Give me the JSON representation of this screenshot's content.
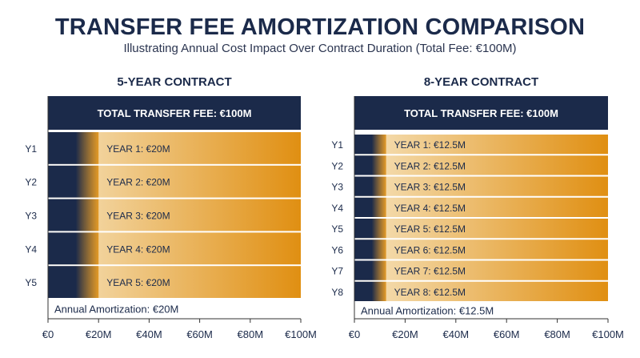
{
  "title": "TRANSFER FEE AMORTIZATION COMPARISON",
  "subtitle": "Illustrating Annual Cost Impact Over Contract Duration (Total Fee: €100M)",
  "colors": {
    "navy": "#1b2a4a",
    "gold_light": "#f6e3bd",
    "gold_dark": "#e08f12",
    "text": "#1b2a4a"
  },
  "chart_data": [
    {
      "type": "bar",
      "orientation": "horizontal",
      "title": "5-YEAR CONTRACT",
      "header_label": "TOTAL TRANSFER FEE: €100M",
      "total_fee": 100,
      "categories": [
        "Y1",
        "Y2",
        "Y3",
        "Y4",
        "Y5"
      ],
      "values": [
        20,
        20,
        20,
        20,
        20
      ],
      "bar_labels": [
        "YEAR 1: €20M",
        "YEAR 2: €20M",
        "YEAR 3: €20M",
        "YEAR 4: €20M",
        "YEAR 5: €20M"
      ],
      "footer_label": "Annual Amortization: €20M",
      "xlim": [
        0,
        100
      ],
      "xticks": [
        0,
        20,
        40,
        60,
        80,
        100
      ],
      "xtick_labels": [
        "€0",
        "€20M",
        "€40M",
        "€60M",
        "€80M",
        "€100M"
      ]
    },
    {
      "type": "bar",
      "orientation": "horizontal",
      "title": "8-YEAR CONTRACT",
      "header_label": "TOTAL TRANSFER FEE: €100M",
      "total_fee": 100,
      "categories": [
        "Y1",
        "Y2",
        "Y3",
        "Y4",
        "Y5",
        "Y6",
        "Y7",
        "Y8"
      ],
      "values": [
        12.5,
        12.5,
        12.5,
        12.5,
        12.5,
        12.5,
        12.5,
        12.5
      ],
      "bar_labels": [
        "YEAR 1: €12.5M",
        "YEAR 2: €12.5M",
        "YEAR 3: €12.5M",
        "YEAR 4: €12.5M",
        "YEAR 5: €12.5M",
        "YEAR 6: €12.5M",
        "YEAR 7: €12.5M",
        "YEAR 8: €12.5M"
      ],
      "footer_label": "Annual Amortization: €12.5M",
      "xlim": [
        0,
        100
      ],
      "xticks": [
        0,
        20,
        40,
        60,
        80,
        100
      ],
      "xtick_labels": [
        "€0",
        "€20M",
        "€40M",
        "€60M",
        "€80M",
        "€100M"
      ]
    }
  ]
}
